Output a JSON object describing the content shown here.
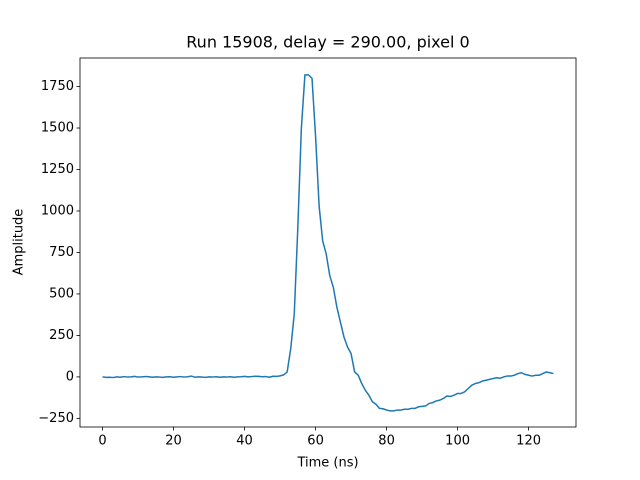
{
  "chart_data": {
    "type": "line",
    "title": "Run 15908, delay = 290.00, pixel 0",
    "x_label": "Time (ns)",
    "y_label": "Amplitude",
    "color": "#1f77b4",
    "x": [
      0,
      1,
      2,
      3,
      4,
      5,
      6,
      7,
      8,
      9,
      10,
      11,
      12,
      13,
      14,
      15,
      16,
      17,
      18,
      19,
      20,
      21,
      22,
      23,
      24,
      25,
      26,
      27,
      28,
      29,
      30,
      31,
      32,
      33,
      34,
      35,
      36,
      37,
      38,
      39,
      40,
      41,
      42,
      43,
      44,
      45,
      46,
      47,
      48,
      49,
      50,
      51,
      52,
      53,
      54,
      55,
      56,
      57,
      58,
      59,
      60,
      61,
      62,
      63,
      64,
      65,
      66,
      67,
      68,
      69,
      70,
      71,
      72,
      73,
      74,
      75,
      76,
      77,
      78,
      79,
      80,
      81,
      82,
      83,
      84,
      85,
      86,
      87,
      88,
      89,
      90,
      91,
      92,
      93,
      94,
      95,
      96,
      97,
      98,
      99,
      100,
      101,
      102,
      103,
      104,
      105,
      106,
      107,
      108,
      109,
      110,
      111,
      112,
      113,
      114,
      115,
      116,
      117,
      118,
      119,
      120,
      121,
      122,
      123,
      124,
      125,
      126,
      127
    ],
    "values": [
      0,
      -3,
      -2,
      -4,
      0,
      -2,
      2,
      -1,
      0,
      3,
      -1,
      0,
      2,
      1,
      -2,
      0,
      -1,
      -3,
      0,
      1,
      -2,
      0,
      2,
      -1,
      1,
      5,
      -2,
      0,
      -1,
      -3,
      0,
      -1,
      1,
      -2,
      0,
      -1,
      1,
      -2,
      0,
      1,
      3,
      0,
      2,
      4,
      3,
      1,
      2,
      -2,
      4,
      3,
      6,
      12,
      30,
      170,
      380,
      900,
      1500,
      1820,
      1820,
      1800,
      1450,
      1030,
      820,
      740,
      610,
      540,
      420,
      330,
      240,
      180,
      140,
      30,
      10,
      -40,
      -80,
      -110,
      -150,
      -165,
      -190,
      -192,
      -200,
      -205,
      -205,
      -200,
      -200,
      -195,
      -195,
      -190,
      -190,
      -180,
      -178,
      -175,
      -160,
      -155,
      -145,
      -140,
      -130,
      -115,
      -118,
      -110,
      -100,
      -100,
      -90,
      -70,
      -50,
      -40,
      -35,
      -25,
      -20,
      -15,
      -10,
      -5,
      -8,
      0,
      5,
      5,
      10,
      20,
      25,
      15,
      10,
      5,
      10,
      10,
      20,
      30,
      25,
      20
    ],
    "xlim": [
      -6.35,
      133.35
    ],
    "ylim": [
      -302,
      1922
    ],
    "xticks": [
      0,
      20,
      40,
      60,
      80,
      100,
      120
    ],
    "yticks": [
      {
        "value": -250,
        "label": "−250"
      },
      0,
      250,
      500,
      750,
      1000,
      1250,
      1500,
      1750
    ]
  }
}
